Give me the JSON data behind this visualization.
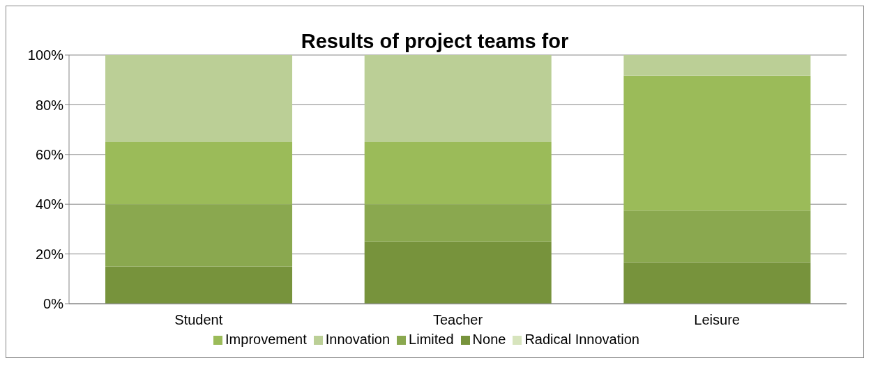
{
  "chart_data": {
    "type": "bar",
    "title": "Results of project teams for",
    "stacked": true,
    "categories": [
      "Student",
      "Teacher",
      "Leisure"
    ],
    "series": [
      {
        "name": "None",
        "color": "#77933c",
        "values": [
          15,
          25,
          16.7
        ]
      },
      {
        "name": "Limited",
        "color": "#8aa84f",
        "values": [
          25,
          15,
          20.8
        ]
      },
      {
        "name": "Improvement",
        "color": "#9bbb59",
        "values": [
          25,
          25,
          54.2
        ]
      },
      {
        "name": "Innovation",
        "color": "#bbcf96",
        "values": [
          35,
          35,
          8.3
        ]
      },
      {
        "name": "Radical Innovation",
        "color": "#d7e4bd",
        "values": [
          0,
          0,
          0
        ]
      }
    ],
    "ylim": [
      0,
      100
    ],
    "yticks": [
      {
        "value": 0,
        "label": "0%"
      },
      {
        "value": 20,
        "label": "20%"
      },
      {
        "value": 40,
        "label": "40%"
      },
      {
        "value": 60,
        "label": "60%"
      },
      {
        "value": 80,
        "label": "80%"
      },
      {
        "value": 100,
        "label": "100%"
      }
    ],
    "grid": "y",
    "legend": "bottom"
  }
}
